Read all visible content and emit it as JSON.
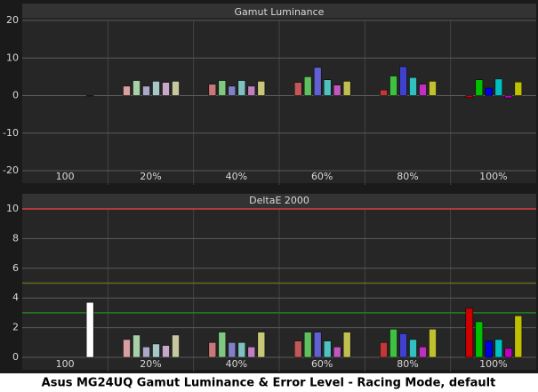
{
  "chart_data": [
    {
      "type": "bar",
      "title": "Gamut Luminance",
      "categories": [
        "100",
        "20%",
        "40%",
        "60%",
        "80%",
        "100%"
      ],
      "ylim": [
        -20,
        20
      ],
      "yticks": [
        -20,
        -10,
        0,
        10,
        20
      ],
      "grid": true,
      "series": [
        {
          "colors": [
            null,
            "#d8a0a0",
            "#c87878",
            "#c05858",
            "#c03838",
            "#d00000"
          ],
          "values": [
            null,
            2.5,
            3,
            3.5,
            1.5,
            -0.5
          ]
        },
        {
          "colors": [
            null,
            "#a8d0a8",
            "#80c880",
            "#60c060",
            "#40c040",
            "#00c000"
          ],
          "values": [
            null,
            4,
            4,
            5,
            5.2,
            4.2
          ]
        },
        {
          "colors": [
            null,
            "#a8a8c8",
            "#8080c8",
            "#6060d0",
            "#4040d0",
            "#0000e0"
          ],
          "values": [
            null,
            2.5,
            2.5,
            7.5,
            7.7,
            2
          ]
        },
        {
          "colors": [
            null,
            "#a8c8c8",
            "#80c0c0",
            "#50c0c0",
            "#30c0c0",
            "#00c0c0"
          ],
          "values": [
            null,
            3.8,
            4,
            4.2,
            4.8,
            4.4
          ]
        },
        {
          "colors": [
            null,
            "#c8a8c8",
            "#c080c0",
            "#c058c0",
            "#c030c0",
            "#c000c0"
          ],
          "values": [
            null,
            3.5,
            2.5,
            2.8,
            3,
            -0.6
          ]
        },
        {
          "colors": [
            null,
            "#c8c8a0",
            "#c8c878",
            "#c0c050",
            "#c0c030",
            "#c0c000"
          ],
          "values": [
            null,
            3.8,
            3.8,
            3.8,
            3.8,
            3.6
          ]
        },
        {
          "colors": [
            "#ffffff",
            null,
            null,
            null,
            null,
            null
          ],
          "values": [
            0,
            null,
            null,
            null,
            null,
            null
          ]
        }
      ]
    },
    {
      "type": "bar",
      "title": "DeltaE 2000",
      "categories": [
        "100",
        "20%",
        "40%",
        "60%",
        "80%",
        "100%"
      ],
      "ylim": [
        0,
        10
      ],
      "yticks": [
        0,
        2,
        4,
        6,
        8,
        10
      ],
      "grid": true,
      "reference_lines": [
        {
          "value": 10,
          "color": "#e04040"
        },
        {
          "value": 5,
          "color": "#6a6a20"
        },
        {
          "value": 3,
          "color": "#208020"
        }
      ],
      "series": [
        {
          "colors": [
            null,
            "#d8a0a0",
            "#c87878",
            "#c05858",
            "#c03838",
            "#d00000"
          ],
          "values": [
            null,
            1.2,
            1,
            1.1,
            1,
            3.3
          ]
        },
        {
          "colors": [
            null,
            "#a8d0a8",
            "#80c880",
            "#60c060",
            "#40c040",
            "#00c000"
          ],
          "values": [
            null,
            1.5,
            1.7,
            1.7,
            1.9,
            2.4
          ]
        },
        {
          "colors": [
            null,
            "#a8a8c8",
            "#8080c8",
            "#6060d0",
            "#4040d0",
            "#0000e0"
          ],
          "values": [
            null,
            0.7,
            1,
            1.7,
            1.6,
            1.1
          ]
        },
        {
          "colors": [
            null,
            "#a8c8c8",
            "#80c0c0",
            "#50c0c0",
            "#30c0c0",
            "#00c0c0"
          ],
          "values": [
            null,
            0.9,
            1,
            1.1,
            1.2,
            1.2
          ]
        },
        {
          "colors": [
            null,
            "#c8a8c8",
            "#c080c0",
            "#c058c0",
            "#c030c0",
            "#c000c0"
          ],
          "values": [
            null,
            0.8,
            0.7,
            0.7,
            0.7,
            0.6
          ]
        },
        {
          "colors": [
            null,
            "#c8c8a0",
            "#c8c878",
            "#c0c050",
            "#c0c030",
            "#c0c000"
          ],
          "values": [
            null,
            1.5,
            1.7,
            1.7,
            1.9,
            2.8
          ]
        },
        {
          "colors": [
            "#ffffff",
            null,
            null,
            null,
            null,
            null
          ],
          "values": [
            3.7,
            null,
            null,
            null,
            null,
            null
          ]
        }
      ]
    }
  ],
  "caption": "Asus MG24UQ Gamut Luminance & Error Level - Racing Mode, default"
}
